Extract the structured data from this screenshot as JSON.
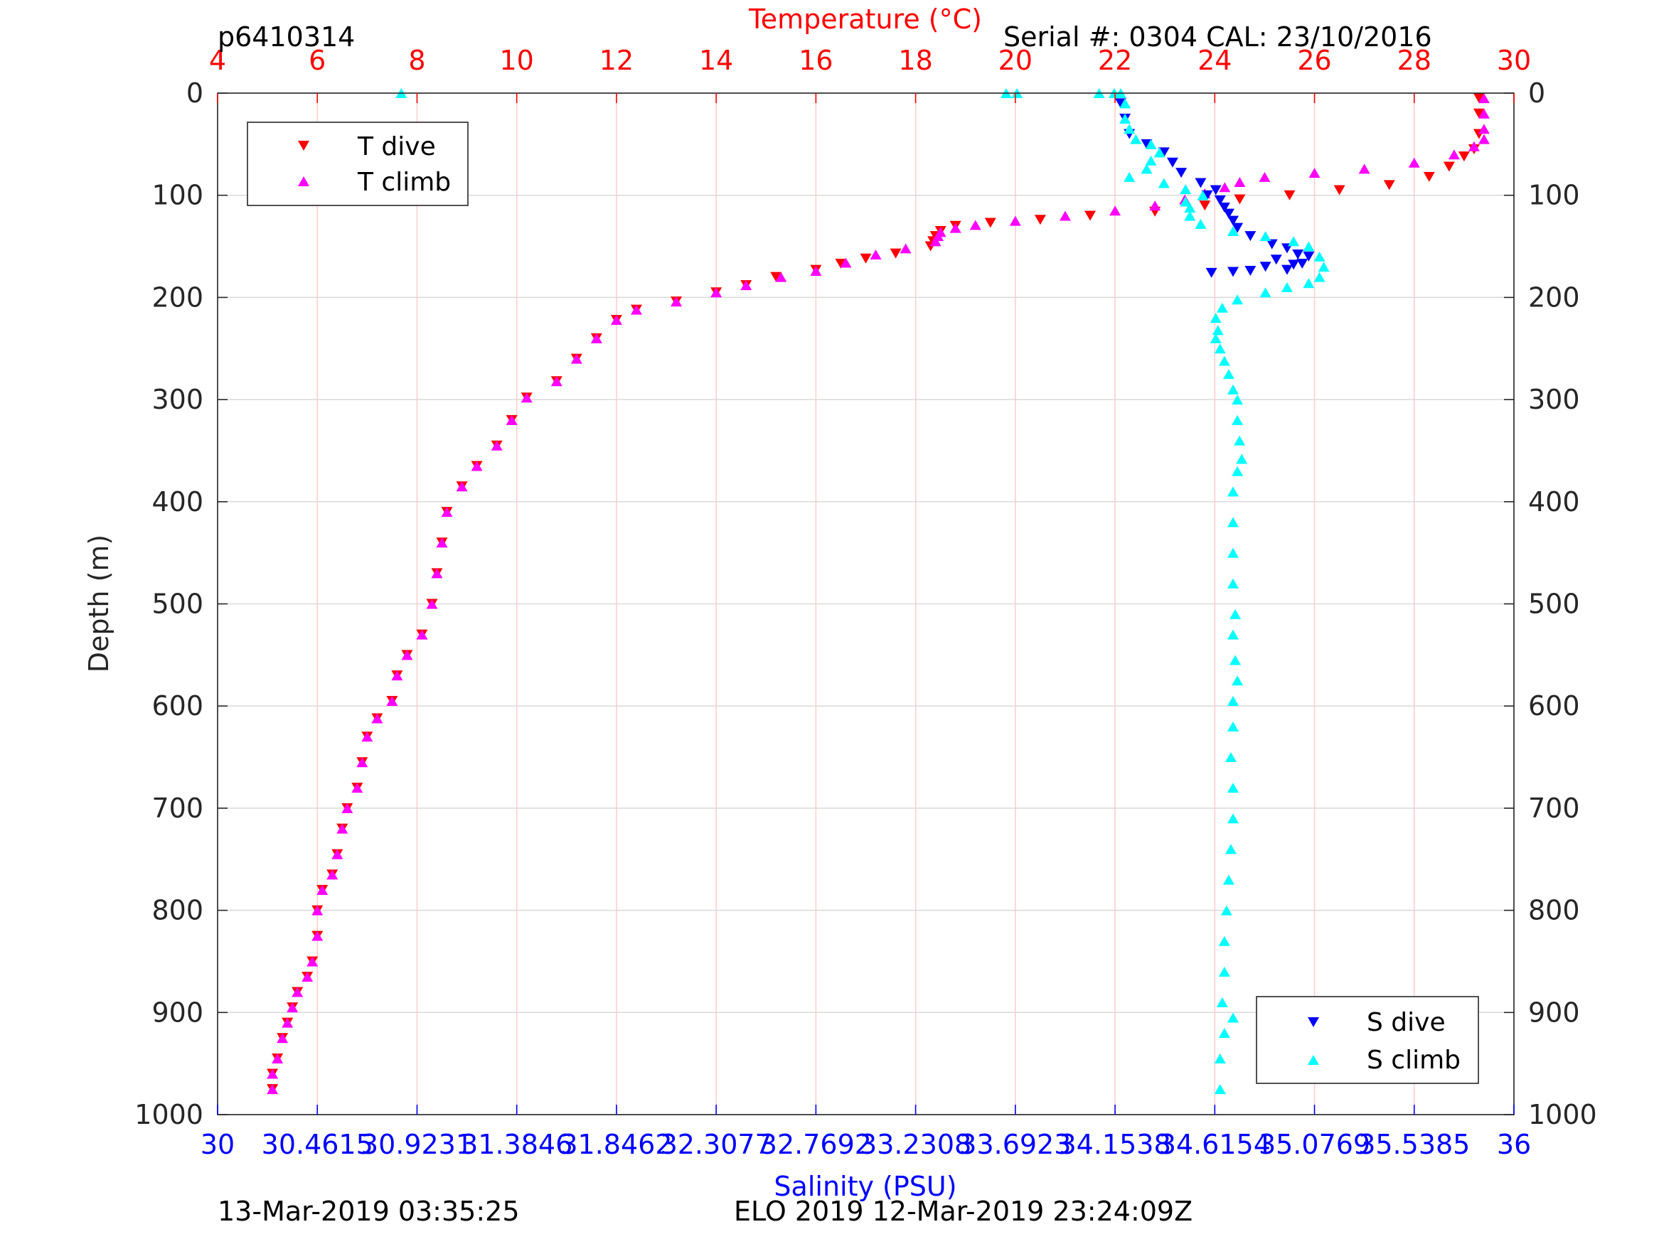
{
  "header": {
    "profile_id": "p6410314",
    "serial_cal": "Serial #: 0304  CAL: 23/10/2016"
  },
  "footer": {
    "left_timestamp": "13-Mar-2019 03:35:25",
    "right_info": "ELO 2019 12-Mar-2019 23:24:09Z"
  },
  "colors": {
    "t_dive": "#ff0000",
    "t_climb": "#ff00ff",
    "s_dive": "#0000ff",
    "s_climb": "#00ffff",
    "temp_axis": "#ff0000",
    "sal_axis": "#0000ff",
    "vgrid": "#ffcccc",
    "hgrid": "#d9d9d9"
  },
  "chart_data": {
    "type": "scatter",
    "ylabel": "Depth (m)",
    "ylim": [
      0,
      1000
    ],
    "y_reversed": true,
    "yticks": [
      0,
      100,
      200,
      300,
      400,
      500,
      600,
      700,
      800,
      900,
      1000
    ],
    "temperature_axis": {
      "label": "Temperature (°C)",
      "position": "top",
      "lim": [
        4,
        30
      ],
      "ticks": [
        4,
        6,
        8,
        10,
        12,
        14,
        16,
        18,
        20,
        22,
        24,
        26,
        28,
        30
      ]
    },
    "salinity_axis": {
      "label": "Salinity (PSU)",
      "position": "bottom",
      "lim": [
        30,
        36
      ],
      "tick_labels": [
        "30",
        "30.4615",
        "30.9231",
        "31.3846",
        "31.8462",
        "32.3077",
        "32.7692",
        "33.2308",
        "33.6923",
        "34.1538",
        "34.6154",
        "35.0769",
        "35.5385",
        "36"
      ]
    },
    "grid": true,
    "legends": [
      {
        "position": "top-left",
        "entries": [
          "T dive",
          "T climb"
        ]
      },
      {
        "position": "bottom-right",
        "entries": [
          "S dive",
          "S climb"
        ]
      }
    ],
    "series": [
      {
        "name": "T dive",
        "axis": "temperature",
        "marker": "triangle-down",
        "points": [
          [
            29.3,
            5
          ],
          [
            29.3,
            20
          ],
          [
            29.3,
            40
          ],
          [
            29.2,
            55
          ],
          [
            29.0,
            62
          ],
          [
            28.7,
            72
          ],
          [
            28.3,
            82
          ],
          [
            27.5,
            90
          ],
          [
            26.5,
            95
          ],
          [
            25.5,
            100
          ],
          [
            24.5,
            104
          ],
          [
            23.8,
            110
          ],
          [
            22.8,
            116
          ],
          [
            21.5,
            120
          ],
          [
            20.5,
            124
          ],
          [
            19.5,
            127
          ],
          [
            18.8,
            130
          ],
          [
            18.5,
            135
          ],
          [
            18.4,
            140
          ],
          [
            18.35,
            145
          ],
          [
            18.3,
            150
          ],
          [
            17.6,
            157
          ],
          [
            17.0,
            162
          ],
          [
            16.5,
            167
          ],
          [
            16.0,
            173
          ],
          [
            15.2,
            180
          ],
          [
            14.6,
            188
          ],
          [
            14.0,
            195
          ],
          [
            13.2,
            204
          ],
          [
            12.4,
            212
          ],
          [
            12.0,
            222
          ],
          [
            11.6,
            240
          ],
          [
            11.2,
            260
          ],
          [
            10.8,
            282
          ],
          [
            10.2,
            298
          ],
          [
            9.9,
            320
          ],
          [
            9.6,
            345
          ],
          [
            9.2,
            365
          ],
          [
            8.9,
            385
          ],
          [
            8.6,
            410
          ],
          [
            8.5,
            440
          ],
          [
            8.4,
            470
          ],
          [
            8.3,
            500
          ],
          [
            8.1,
            530
          ],
          [
            7.8,
            550
          ],
          [
            7.6,
            570
          ],
          [
            7.5,
            595
          ],
          [
            7.2,
            612
          ],
          [
            7.0,
            630
          ],
          [
            6.9,
            655
          ],
          [
            6.8,
            680
          ],
          [
            6.6,
            700
          ],
          [
            6.5,
            720
          ],
          [
            6.4,
            745
          ],
          [
            6.3,
            765
          ],
          [
            6.1,
            780
          ],
          [
            6.0,
            800
          ],
          [
            6.0,
            825
          ],
          [
            5.9,
            850
          ],
          [
            5.8,
            865
          ],
          [
            5.6,
            880
          ],
          [
            5.5,
            895
          ],
          [
            5.4,
            910
          ],
          [
            5.3,
            925
          ],
          [
            5.2,
            945
          ],
          [
            5.1,
            960
          ],
          [
            5.1,
            975
          ]
        ]
      },
      {
        "name": "T climb",
        "axis": "temperature",
        "marker": "triangle-up",
        "points": [
          [
            29.4,
            5
          ],
          [
            29.4,
            20
          ],
          [
            29.4,
            35
          ],
          [
            29.4,
            45
          ],
          [
            29.2,
            52
          ],
          [
            28.8,
            60
          ],
          [
            28.0,
            68
          ],
          [
            27.0,
            74
          ],
          [
            26.0,
            78
          ],
          [
            25.0,
            82
          ],
          [
            24.5,
            87
          ],
          [
            24.2,
            92
          ],
          [
            23.8,
            98
          ],
          [
            23.4,
            104
          ],
          [
            22.8,
            110
          ],
          [
            22.0,
            115
          ],
          [
            21.0,
            120
          ],
          [
            20.0,
            125
          ],
          [
            19.2,
            129
          ],
          [
            18.8,
            132
          ],
          [
            18.5,
            136
          ],
          [
            18.45,
            140
          ],
          [
            18.4,
            145
          ],
          [
            17.8,
            152
          ],
          [
            17.2,
            158
          ],
          [
            16.6,
            166
          ],
          [
            16.0,
            174
          ],
          [
            15.3,
            180
          ],
          [
            14.6,
            188
          ],
          [
            14.0,
            195
          ],
          [
            13.2,
            204
          ],
          [
            12.4,
            212
          ],
          [
            12.0,
            222
          ],
          [
            11.6,
            240
          ],
          [
            11.2,
            260
          ],
          [
            10.8,
            282
          ],
          [
            10.2,
            298
          ],
          [
            9.9,
            320
          ],
          [
            9.6,
            345
          ],
          [
            9.2,
            365
          ],
          [
            8.9,
            385
          ],
          [
            8.6,
            410
          ],
          [
            8.5,
            440
          ],
          [
            8.4,
            470
          ],
          [
            8.3,
            500
          ],
          [
            8.1,
            530
          ],
          [
            7.8,
            550
          ],
          [
            7.6,
            570
          ],
          [
            7.5,
            595
          ],
          [
            7.2,
            612
          ],
          [
            7.0,
            630
          ],
          [
            6.9,
            655
          ],
          [
            6.8,
            680
          ],
          [
            6.6,
            700
          ],
          [
            6.5,
            720
          ],
          [
            6.4,
            745
          ],
          [
            6.3,
            765
          ],
          [
            6.1,
            780
          ],
          [
            6.0,
            800
          ],
          [
            6.0,
            825
          ],
          [
            5.9,
            850
          ],
          [
            5.8,
            865
          ],
          [
            5.6,
            880
          ],
          [
            5.5,
            895
          ],
          [
            5.4,
            910
          ],
          [
            5.3,
            925
          ],
          [
            5.2,
            945
          ],
          [
            5.1,
            960
          ],
          [
            5.1,
            975
          ]
        ]
      },
      {
        "name": "S dive",
        "axis": "salinity",
        "marker": "triangle-down",
        "points": [
          [
            34.18,
            10
          ],
          [
            34.2,
            25
          ],
          [
            34.22,
            40
          ],
          [
            34.3,
            50
          ],
          [
            34.38,
            58
          ],
          [
            34.42,
            68
          ],
          [
            34.46,
            78
          ],
          [
            34.55,
            88
          ],
          [
            34.62,
            95
          ],
          [
            34.58,
            100
          ],
          [
            34.64,
            105
          ],
          [
            34.66,
            112
          ],
          [
            34.68,
            118
          ],
          [
            34.7,
            125
          ],
          [
            34.72,
            132
          ],
          [
            34.78,
            140
          ],
          [
            34.88,
            148
          ],
          [
            34.95,
            152
          ],
          [
            35.0,
            158
          ],
          [
            34.9,
            163
          ],
          [
            35.02,
            167
          ],
          [
            34.85,
            170
          ],
          [
            34.95,
            173
          ],
          [
            34.78,
            174
          ],
          [
            34.7,
            175
          ],
          [
            34.6,
            176
          ],
          [
            35.05,
            160
          ],
          [
            34.98,
            168
          ]
        ]
      },
      {
        "name": "S climb",
        "axis": "salinity",
        "marker": "triangle-up",
        "points": [
          [
            30.85,
            0
          ],
          [
            33.65,
            0
          ],
          [
            33.7,
            0
          ],
          [
            34.08,
            0
          ],
          [
            34.15,
            0
          ],
          [
            34.18,
            0
          ],
          [
            34.2,
            10
          ],
          [
            34.2,
            25
          ],
          [
            34.22,
            35
          ],
          [
            34.25,
            45
          ],
          [
            34.32,
            50
          ],
          [
            34.36,
            58
          ],
          [
            34.32,
            66
          ],
          [
            34.3,
            74
          ],
          [
            34.22,
            82
          ],
          [
            34.38,
            88
          ],
          [
            34.48,
            94
          ],
          [
            34.56,
            100
          ],
          [
            34.48,
            106
          ],
          [
            34.5,
            112
          ],
          [
            34.5,
            120
          ],
          [
            34.55,
            128
          ],
          [
            34.7,
            135
          ],
          [
            34.85,
            140
          ],
          [
            34.98,
            145
          ],
          [
            35.05,
            150
          ],
          [
            35.1,
            160
          ],
          [
            35.12,
            170
          ],
          [
            35.1,
            180
          ],
          [
            35.05,
            186
          ],
          [
            34.95,
            190
          ],
          [
            34.85,
            195
          ],
          [
            34.72,
            202
          ],
          [
            34.65,
            210
          ],
          [
            34.62,
            220
          ],
          [
            34.63,
            232
          ],
          [
            34.62,
            240
          ],
          [
            34.64,
            250
          ],
          [
            34.66,
            262
          ],
          [
            34.68,
            275
          ],
          [
            34.7,
            290
          ],
          [
            34.72,
            300
          ],
          [
            34.72,
            320
          ],
          [
            34.73,
            340
          ],
          [
            34.74,
            358
          ],
          [
            34.72,
            370
          ],
          [
            34.7,
            390
          ],
          [
            34.7,
            420
          ],
          [
            34.7,
            450
          ],
          [
            34.7,
            480
          ],
          [
            34.71,
            510
          ],
          [
            34.7,
            530
          ],
          [
            34.71,
            555
          ],
          [
            34.72,
            575
          ],
          [
            34.7,
            595
          ],
          [
            34.7,
            620
          ],
          [
            34.69,
            650
          ],
          [
            34.7,
            680
          ],
          [
            34.7,
            710
          ],
          [
            34.69,
            740
          ],
          [
            34.68,
            770
          ],
          [
            34.67,
            800
          ],
          [
            34.66,
            830
          ],
          [
            34.66,
            860
          ],
          [
            34.65,
            890
          ],
          [
            34.7,
            905
          ],
          [
            34.66,
            920
          ],
          [
            34.64,
            945
          ],
          [
            34.64,
            975
          ]
        ]
      }
    ]
  }
}
